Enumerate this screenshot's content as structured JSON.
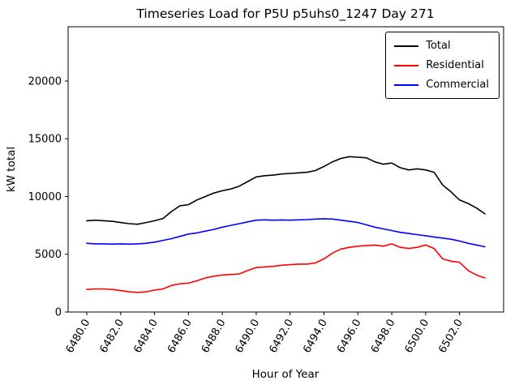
{
  "chart_data": {
    "type": "line",
    "title": "Timeseries Load for P5U p5uhs0_1247  Day 271",
    "xlabel": "Hour of Year",
    "ylabel": "kW total",
    "xlim": [
      6478.9,
      6504.6
    ],
    "ylim": [
      0,
      24700
    ],
    "xticks": [
      6480,
      6482,
      6484,
      6486,
      6488,
      6490,
      6492,
      6494,
      6496,
      6498,
      6500,
      6502
    ],
    "xtick_labels": [
      "6480.0",
      "6482.0",
      "6484.0",
      "6486.0",
      "6488.0",
      "6490.0",
      "6492.0",
      "6494.0",
      "6496.0",
      "6498.0",
      "6500.0",
      "6502.0"
    ],
    "yticks": [
      0,
      5000,
      10000,
      15000,
      20000
    ],
    "grid": false,
    "legend_position": "upper right",
    "x": [
      6480.0,
      6480.5,
      6481.0,
      6481.5,
      6482.0,
      6482.5,
      6483.0,
      6483.5,
      6484.0,
      6484.5,
      6485.0,
      6485.5,
      6486.0,
      6486.5,
      6487.0,
      6487.5,
      6488.0,
      6488.5,
      6489.0,
      6489.5,
      6490.0,
      6490.5,
      6491.0,
      6491.5,
      6492.0,
      6492.5,
      6493.0,
      6493.5,
      6494.0,
      6494.5,
      6495.0,
      6495.5,
      6496.0,
      6496.5,
      6497.0,
      6497.5,
      6498.0,
      6498.5,
      6499.0,
      6499.5,
      6500.0,
      6500.5,
      6501.0,
      6501.5,
      6502.0,
      6502.5,
      6503.0,
      6503.5
    ],
    "series": [
      {
        "name": "Total",
        "color": "#000000",
        "values": [
          7900,
          7950,
          7900,
          7850,
          7750,
          7650,
          7600,
          7750,
          7900,
          8100,
          8700,
          9200,
          9300,
          9700,
          10000,
          10300,
          10500,
          10650,
          10900,
          11300,
          11700,
          11800,
          11850,
          11950,
          12000,
          12050,
          12100,
          12250,
          12600,
          13000,
          13300,
          13450,
          13400,
          13350,
          13000,
          12800,
          12900,
          12500,
          12300,
          12400,
          12300,
          12100,
          11000,
          10400,
          9700,
          9400,
          9000,
          8500
        ]
      },
      {
        "name": "Residential",
        "color": "#ff0000",
        "values": [
          1950,
          2000,
          2000,
          1950,
          1850,
          1750,
          1700,
          1750,
          1900,
          2000,
          2300,
          2450,
          2500,
          2700,
          2950,
          3100,
          3200,
          3250,
          3300,
          3600,
          3850,
          3900,
          3950,
          4050,
          4100,
          4150,
          4150,
          4250,
          4600,
          5100,
          5450,
          5600,
          5700,
          5750,
          5800,
          5700,
          5900,
          5600,
          5500,
          5600,
          5800,
          5500,
          4600,
          4400,
          4300,
          3600,
          3200,
          2950
        ]
      },
      {
        "name": "Commercial",
        "color": "#0000ff",
        "values": [
          5950,
          5900,
          5900,
          5880,
          5900,
          5880,
          5900,
          5950,
          6050,
          6200,
          6350,
          6550,
          6750,
          6850,
          7000,
          7150,
          7350,
          7500,
          7650,
          7800,
          7950,
          7980,
          7950,
          7970,
          7950,
          7980,
          8000,
          8050,
          8080,
          8050,
          7950,
          7850,
          7750,
          7550,
          7350,
          7200,
          7050,
          6900,
          6800,
          6700,
          6600,
          6500,
          6400,
          6300,
          6150,
          5950,
          5800,
          5650
        ]
      }
    ]
  }
}
